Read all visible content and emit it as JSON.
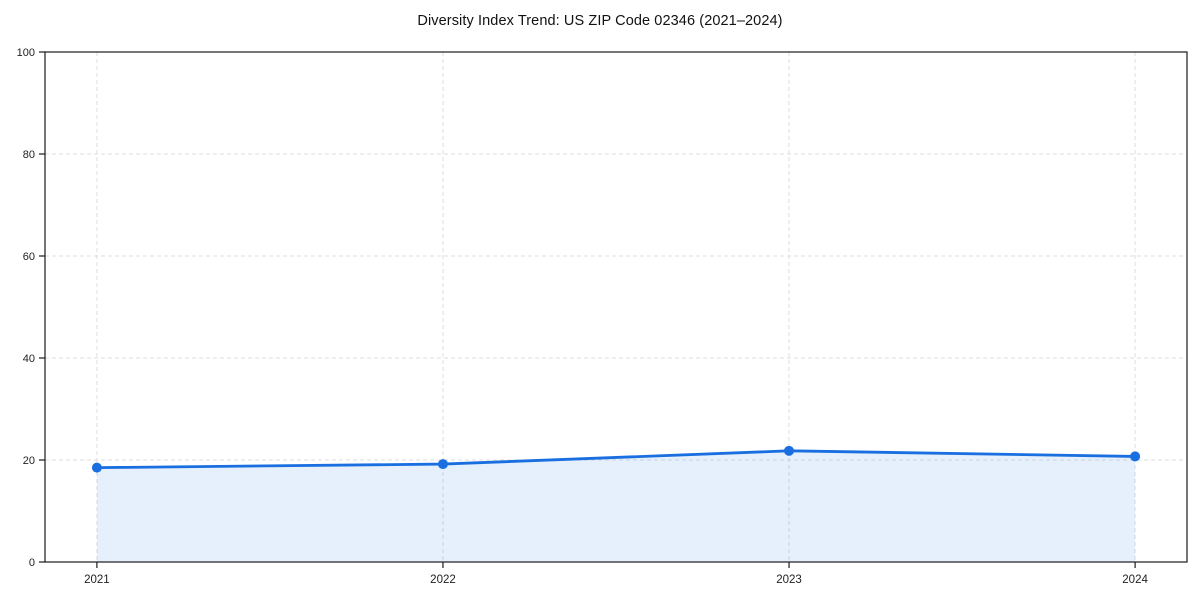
{
  "chart_data": {
    "type": "area",
    "title": "Diversity Index Trend: US ZIP Code 02346 (2021–2024)",
    "x": [
      2021,
      2022,
      2023,
      2024
    ],
    "x_tick_labels": [
      "2021",
      "2022",
      "2023",
      "2024"
    ],
    "series": [
      {
        "name": "Diversity Index",
        "values": [
          18.5,
          19.2,
          21.8,
          20.7
        ]
      }
    ],
    "xlabel": "",
    "ylabel": "",
    "ylim": [
      0,
      100
    ],
    "yticks": [
      0,
      20,
      40,
      60,
      80,
      100
    ],
    "y_tick_labels": [
      "0",
      "20",
      "40",
      "60",
      "80",
      "100"
    ],
    "x_margin_fraction": 0.05,
    "grid": true,
    "grid_style": "dashed",
    "legend_position": "none",
    "colors": {
      "line": "#1a6fe0",
      "marker": "#1a6fe0",
      "fill": "#1a6fe0",
      "fill_opacity": 0.11,
      "grid": "#dedede",
      "spine": "#1a1a1a",
      "tick_label": "#222222",
      "title": "#111111",
      "background": "#ffffff"
    }
  }
}
